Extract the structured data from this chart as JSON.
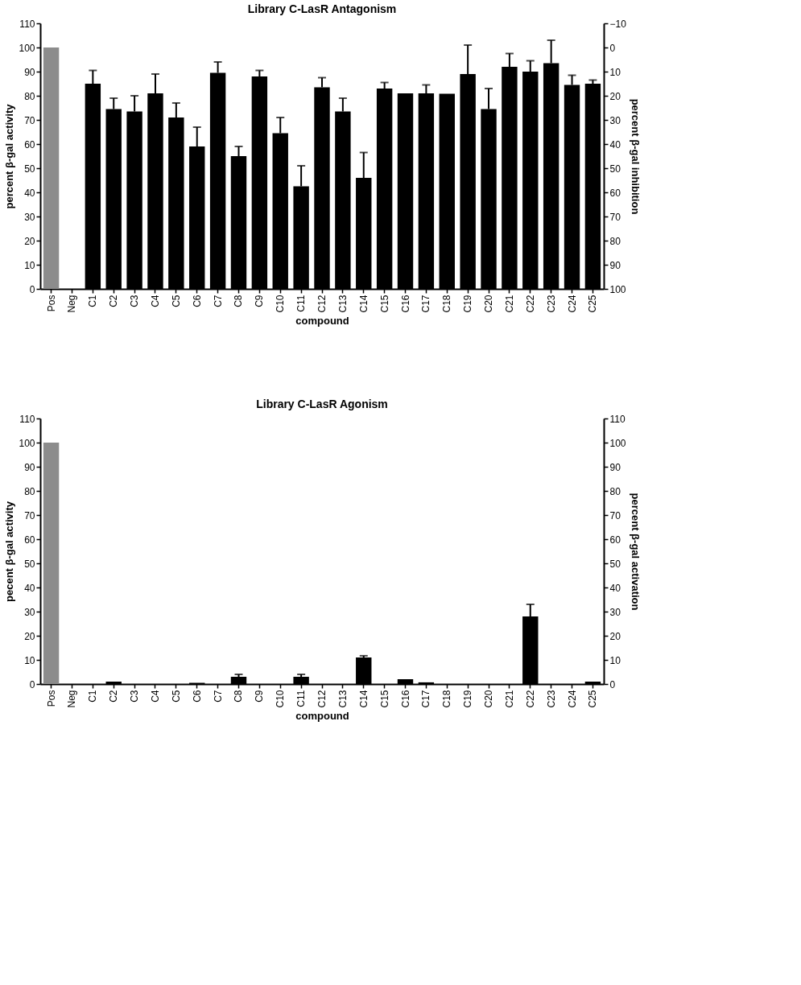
{
  "chart_data": [
    {
      "type": "bar",
      "title": "Library C-LasR Antagonism",
      "xlabel": "compound",
      "ylabel": "percent β-gal activity",
      "y2label": "percent β-gal inhibition",
      "categories": [
        "Pos",
        "Neg",
        "C1",
        "C2",
        "C3",
        "C4",
        "C5",
        "C6",
        "C7",
        "C8",
        "C9",
        "C10",
        "C11",
        "C12",
        "C13",
        "C14",
        "C15",
        "C16",
        "C17",
        "C18",
        "C19",
        "C20",
        "C21",
        "C22",
        "C23",
        "C24",
        "C25"
      ],
      "values": [
        100,
        0,
        85,
        74.5,
        73.5,
        81,
        71,
        59,
        89.5,
        55,
        88,
        64.5,
        42.5,
        83.5,
        73.5,
        46,
        83,
        81,
        81,
        80.8,
        89,
        74.5,
        92,
        90,
        93.5,
        84.5,
        85
      ],
      "errors": [
        null,
        null,
        [
          85,
          90.5
        ],
        [
          74.5,
          79
        ],
        [
          73.5,
          80
        ],
        [
          81,
          89
        ],
        [
          71,
          77
        ],
        [
          59,
          67
        ],
        [
          89.5,
          94
        ],
        [
          55,
          59
        ],
        [
          88,
          90.5
        ],
        [
          64.5,
          71
        ],
        [
          42.5,
          51
        ],
        [
          83.5,
          87.5
        ],
        [
          73.5,
          79
        ],
        [
          46,
          56.5
        ],
        [
          83,
          85.5
        ],
        null,
        [
          81,
          84.5
        ],
        null,
        [
          89,
          101
        ],
        [
          74.5,
          83
        ],
        [
          92,
          97.5
        ],
        [
          90,
          94.5
        ],
        [
          93.5,
          103
        ],
        [
          84.5,
          88.5
        ],
        [
          85,
          86.5
        ]
      ],
      "colors": [
        "#8c8c8c",
        "#000000",
        "#000000",
        "#000000",
        "#000000",
        "#000000",
        "#000000",
        "#000000",
        "#000000",
        "#000000",
        "#000000",
        "#000000",
        "#000000",
        "#000000",
        "#000000",
        "#000000",
        "#000000",
        "#000000",
        "#000000",
        "#000000",
        "#000000",
        "#000000",
        "#000000",
        "#000000",
        "#000000",
        "#000000",
        "#000000"
      ],
      "ylim": [
        0,
        110
      ],
      "yticks": [
        0,
        10,
        20,
        30,
        40,
        50,
        60,
        70,
        80,
        90,
        100,
        110
      ],
      "y2lim": [
        100,
        -10
      ],
      "y2ticks": [
        -10,
        0,
        10,
        20,
        30,
        40,
        50,
        60,
        70,
        80,
        90,
        100
      ],
      "grid": false
    },
    {
      "type": "bar",
      "title": "Library C-LasR Agonism",
      "xlabel": "compound",
      "ylabel": "pecent β-gal activity",
      "y2label": "percent β-gal activation",
      "categories": [
        "Pos",
        "Neg",
        "C1",
        "C2",
        "C3",
        "C4",
        "C5",
        "C6",
        "C7",
        "C8",
        "C9",
        "C10",
        "C11",
        "C12",
        "C13",
        "C14",
        "C15",
        "C16",
        "C17",
        "C18",
        "C19",
        "C20",
        "C21",
        "C22",
        "C23",
        "C24",
        "C25"
      ],
      "values": [
        100,
        0,
        0,
        1,
        0,
        0,
        0,
        0.5,
        0,
        3,
        0,
        0,
        3,
        0,
        0,
        11,
        0,
        2,
        0.7,
        0,
        0,
        0,
        0,
        28,
        0,
        0,
        1
      ],
      "errors": [
        null,
        null,
        null,
        null,
        null,
        null,
        null,
        null,
        null,
        [
          3,
          4
        ],
        null,
        null,
        [
          3,
          4
        ],
        null,
        null,
        [
          11,
          11.7
        ],
        null,
        null,
        null,
        null,
        null,
        null,
        null,
        [
          28,
          33
        ],
        null,
        null,
        null
      ],
      "colors": [
        "#8c8c8c",
        "#000000",
        "#000000",
        "#000000",
        "#000000",
        "#000000",
        "#000000",
        "#000000",
        "#000000",
        "#000000",
        "#000000",
        "#000000",
        "#000000",
        "#000000",
        "#000000",
        "#000000",
        "#000000",
        "#000000",
        "#000000",
        "#000000",
        "#000000",
        "#000000",
        "#000000",
        "#000000",
        "#000000",
        "#000000",
        "#000000"
      ],
      "ylim": [
        0,
        110
      ],
      "yticks": [
        0,
        10,
        20,
        30,
        40,
        50,
        60,
        70,
        80,
        90,
        100,
        110
      ],
      "y2lim": [
        0,
        110
      ],
      "y2ticks": [
        0,
        10,
        20,
        30,
        40,
        50,
        60,
        70,
        80,
        90,
        100,
        110
      ],
      "grid": false
    }
  ]
}
